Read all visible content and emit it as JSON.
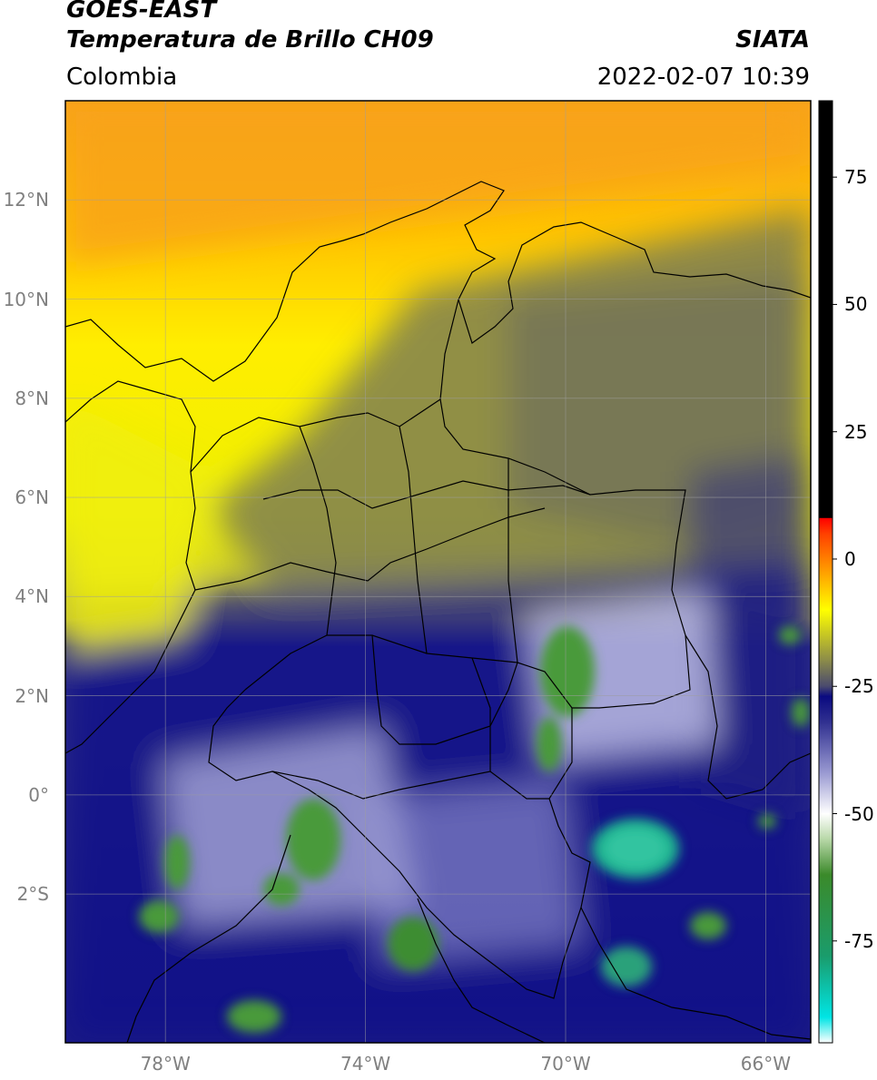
{
  "header": {
    "satellite": "GOES-EAST",
    "product": "Temperatura de Brillo CH09",
    "source": "SIATA",
    "region": "Colombia",
    "datetime": "2022-02-07 10:39"
  },
  "map": {
    "extent": {
      "lon_min": -80,
      "lon_max": -65.1,
      "lat_min": -5.0,
      "lat_max": 14.0
    },
    "grid": true,
    "lat_ticks": [
      {
        "value": 12,
        "label": "12°N"
      },
      {
        "value": 10,
        "label": "10°N"
      },
      {
        "value": 8,
        "label": "8°N"
      },
      {
        "value": 6,
        "label": "6°N"
      },
      {
        "value": 4,
        "label": "4°N"
      },
      {
        "value": 2,
        "label": "2°N"
      },
      {
        "value": 0,
        "label": "0°"
      },
      {
        "value": -2,
        "label": "2°S"
      }
    ],
    "lon_ticks": [
      {
        "value": -78,
        "label": "78°W"
      },
      {
        "value": -74,
        "label": "74°W"
      },
      {
        "value": -70,
        "label": "70°W"
      },
      {
        "value": -66,
        "label": "66°W"
      }
    ]
  },
  "colorbar": {
    "min": -95,
    "max": 90,
    "ticks": [
      {
        "value": 75,
        "label": "75"
      },
      {
        "value": 50,
        "label": "50"
      },
      {
        "value": 25,
        "label": "25"
      },
      {
        "value": 0,
        "label": "0"
      },
      {
        "value": -25,
        "label": "-25"
      },
      {
        "value": -50,
        "label": "-50"
      },
      {
        "value": -75,
        "label": "-75"
      }
    ],
    "stops": [
      {
        "value": -95,
        "color": "#ffffff"
      },
      {
        "value": -90,
        "color": "#00e5e5"
      },
      {
        "value": -78,
        "color": "#1a9c6c"
      },
      {
        "value": -62,
        "color": "#3b8a2a"
      },
      {
        "value": -55,
        "color": "#b8d8a8"
      },
      {
        "value": -50,
        "color": "#ffffff"
      },
      {
        "value": -42,
        "color": "#9a9ad2"
      },
      {
        "value": -32,
        "color": "#303090"
      },
      {
        "value": -27,
        "color": "#0a0a80"
      },
      {
        "value": -25,
        "color": "#4a4a6e"
      },
      {
        "value": -20,
        "color": "#8a8a4a"
      },
      {
        "value": -10,
        "color": "#ffff00"
      },
      {
        "value": -3,
        "color": "#ffa500"
      },
      {
        "value": 5,
        "color": "#ff4000"
      },
      {
        "value": 8,
        "color": "#ff0000"
      },
      {
        "value": 8.1,
        "color": "#000000"
      },
      {
        "value": 90,
        "color": "#000000"
      }
    ]
  }
}
